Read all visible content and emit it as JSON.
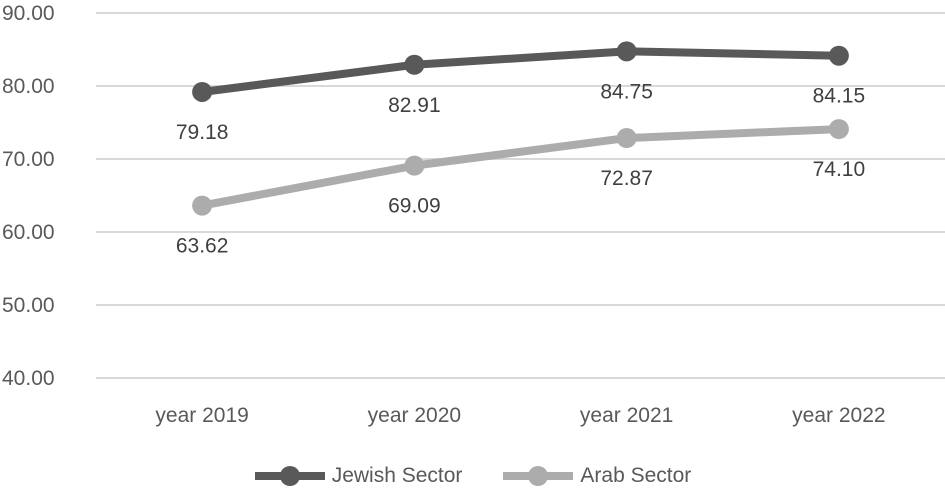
{
  "chart_data": {
    "type": "line",
    "title": "",
    "xlabel": "",
    "ylabel": "",
    "categories": [
      "year 2019",
      "year 2020",
      "year 2021",
      "year 2022"
    ],
    "series": [
      {
        "name": "Jewish Sector",
        "values": [
          79.18,
          82.91,
          84.75,
          84.15
        ],
        "labels": [
          "79.18",
          "82.91",
          "84.75",
          "84.15"
        ],
        "color": "#595959"
      },
      {
        "name": "Arab Sector",
        "values": [
          63.62,
          69.09,
          72.87,
          74.1
        ],
        "labels": [
          "63.62",
          "69.09",
          "72.87",
          "74.10"
        ],
        "color": "#ACACAC"
      }
    ],
    "ylim": [
      40,
      90
    ],
    "yticks": {
      "values": [
        90,
        80,
        70,
        60,
        50,
        40
      ],
      "labels": [
        "90.00",
        "80.00",
        "70.00",
        "60.00",
        "50.00",
        "40.00"
      ]
    },
    "grid": true,
    "legend_position": "bottom",
    "colors": {
      "gridline": "#D9D9D9",
      "tick_label": "#595959",
      "axis_label": "#595959",
      "data_label": "#404040",
      "background": "#FFFFFF"
    }
  }
}
